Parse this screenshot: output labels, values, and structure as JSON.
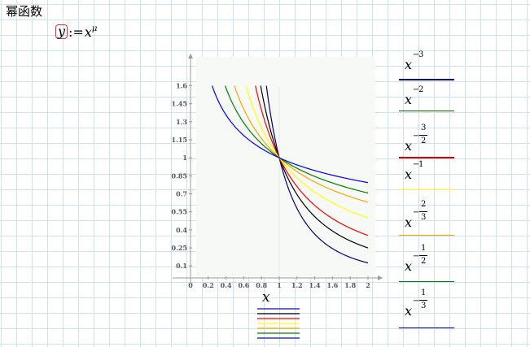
{
  "document": {
    "title": "幂函数",
    "formula": {
      "lhs": "y",
      "assign": ":=",
      "base": "x",
      "exponent": "μ"
    },
    "x_axis_label": "x"
  },
  "side_labels": [
    {
      "base": "x",
      "sign": "−",
      "num": "3",
      "den": "",
      "color": "#000080"
    },
    {
      "base": "x",
      "sign": "−",
      "num": "2",
      "den": "",
      "color": "#006400"
    },
    {
      "base": "x",
      "sign": "−",
      "num": "3",
      "den": "2",
      "color": "#e00000"
    },
    {
      "base": "x",
      "sign": "−",
      "num": "1",
      "den": "",
      "color": "#ffff00"
    },
    {
      "base": "x",
      "sign": "−",
      "num": "2",
      "den": "3",
      "color": "#ffa500"
    },
    {
      "base": "x",
      "sign": "−",
      "num": "1",
      "den": "2",
      "color": "#008000"
    },
    {
      "base": "x",
      "sign": "−",
      "num": "1",
      "den": "3",
      "color": "#0000c0"
    }
  ],
  "chart_data": {
    "type": "line",
    "xlim": [
      0,
      2
    ],
    "ylim": [
      0,
      1.6
    ],
    "x_ticks": [
      "0",
      "0.2",
      "0.4",
      "0.6",
      "0.8",
      "1",
      "1.2",
      "1.4",
      "1.6",
      "1.8",
      "2"
    ],
    "y_ticks": [
      "0.1",
      "0.25",
      "0.4",
      "0.55",
      "0.7",
      "0.85",
      "1",
      "1.15",
      "1.3",
      "1.45",
      "1.6"
    ],
    "series": [
      {
        "exponent": -3,
        "color": "#000080"
      },
      {
        "exponent": -2,
        "color": "#000000"
      },
      {
        "exponent": -1.5,
        "color": "#ff0000"
      },
      {
        "exponent": -1,
        "color": "#ffff00"
      },
      {
        "exponent": -0.6667,
        "color": "#ffa500"
      },
      {
        "exponent": -0.5,
        "color": "#008000"
      },
      {
        "exponent": -0.3333,
        "color": "#0000ff"
      }
    ],
    "legend_colors": [
      "#0000ff",
      "#000000",
      "#ff0000",
      "#ffff00",
      "#ffa500",
      "#008000",
      "#0000ff"
    ]
  }
}
